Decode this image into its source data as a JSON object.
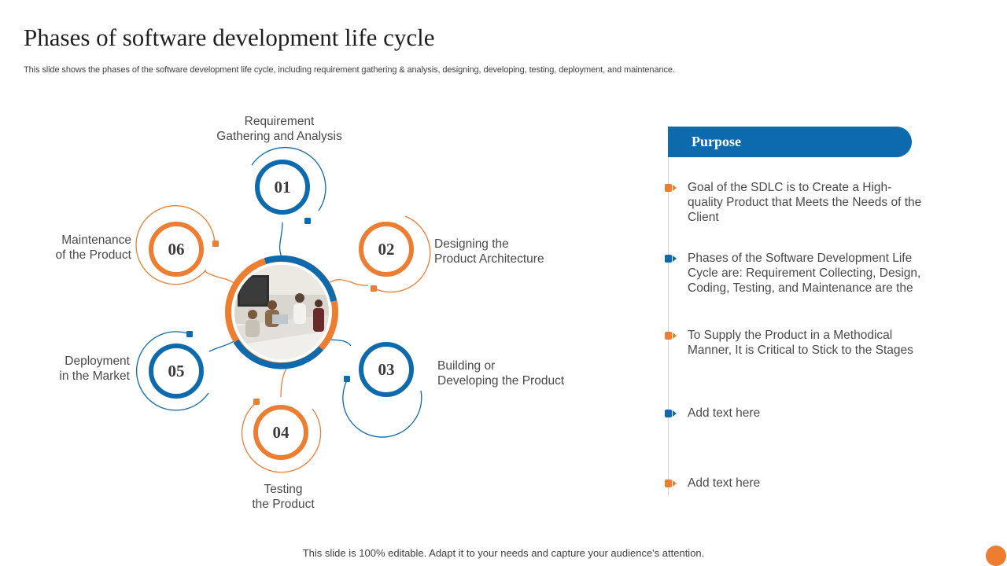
{
  "slide": {
    "title": "Phases of software development life cycle",
    "subtitle": "This slide shows the phases of the software development life cycle, including requirement gathering & analysis, designing, developing, testing, deployment, and maintenance.",
    "footer": "This slide is 100% editable. Adapt it to your needs and capture your audience's attention."
  },
  "colors": {
    "blue": "#0d6aad",
    "orange": "#ed7d31",
    "text": "#4a4a4a"
  },
  "phases": [
    {
      "number": "01",
      "label": "Requirement\nGathering and Analysis",
      "color": "blue"
    },
    {
      "number": "02",
      "label": "Designing the\nProduct Architecture",
      "color": "orange"
    },
    {
      "number": "03",
      "label": "Building or\nDeveloping the Product",
      "color": "blue"
    },
    {
      "number": "04",
      "label": "Testing\nthe Product",
      "color": "orange"
    },
    {
      "number": "05",
      "label": "Deployment\nin the Market",
      "color": "blue"
    },
    {
      "number": "06",
      "label": "Maintenance\nof the Product",
      "color": "orange"
    }
  ],
  "purpose": {
    "title": "Purpose",
    "items": [
      {
        "text": "Goal of the SDLC is to Create a High-quality Product that Meets the Needs of the Client",
        "color": "orange"
      },
      {
        "text": "Phases of the Software Development Life Cycle are: Requirement Collecting, Design, Coding, Testing, and Maintenance are the",
        "color": "blue"
      },
      {
        "text": "To Supply the Product in a Methodical Manner, It is Critical to Stick to the Stages",
        "color": "orange"
      },
      {
        "text": "Add text here",
        "color": "blue"
      },
      {
        "text": "Add text here",
        "color": "orange"
      }
    ]
  },
  "center_image": {
    "icon": "team-meeting-photo"
  }
}
